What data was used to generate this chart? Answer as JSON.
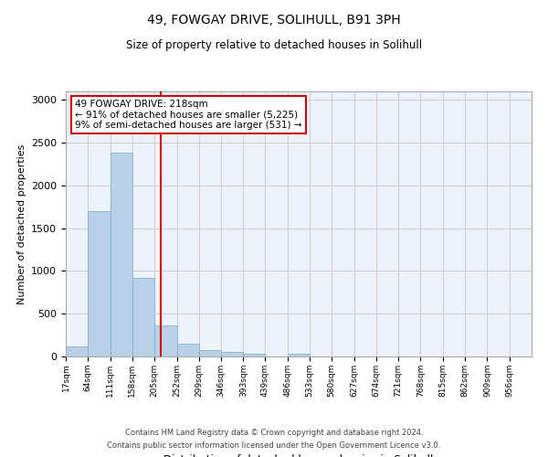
{
  "title1": "49, FOWGAY DRIVE, SOLIHULL, B91 3PH",
  "title2": "Size of property relative to detached houses in Solihull",
  "xlabel": "Distribution of detached houses by size in Solihull",
  "ylabel": "Number of detached properties",
  "bin_labels": [
    "17sqm",
    "64sqm",
    "111sqm",
    "158sqm",
    "205sqm",
    "252sqm",
    "299sqm",
    "346sqm",
    "393sqm",
    "439sqm",
    "486sqm",
    "533sqm",
    "580sqm",
    "627sqm",
    "674sqm",
    "721sqm",
    "768sqm",
    "815sqm",
    "862sqm",
    "909sqm",
    "956sqm"
  ],
  "bar_values": [
    120,
    1700,
    2380,
    920,
    360,
    150,
    80,
    55,
    30,
    0,
    30,
    0,
    0,
    0,
    0,
    0,
    0,
    0,
    0,
    0
  ],
  "bin_edges": [
    17,
    64,
    111,
    158,
    205,
    252,
    299,
    346,
    393,
    439,
    486,
    533,
    580,
    627,
    674,
    721,
    768,
    815,
    862,
    909,
    956
  ],
  "bar_color": "#b8d0e8",
  "bar_edge_color": "#7aacc8",
  "property_size": 218,
  "red_line_color": "#cc0000",
  "annotation_line1": "49 FOWGAY DRIVE: 218sqm",
  "annotation_line2": "← 91% of detached houses are smaller (5,225)",
  "annotation_line3": "9% of semi-detached houses are larger (531) →",
  "annotation_box_color": "#ffffff",
  "annotation_box_edge": "#cc0000",
  "ylim": [
    0,
    3100
  ],
  "yticks": [
    0,
    500,
    1000,
    1500,
    2000,
    2500,
    3000
  ],
  "grid_color": "#cccccc",
  "bg_color": "#eef2fb",
  "footer1": "Contains HM Land Registry data © Crown copyright and database right 2024.",
  "footer2": "Contains public sector information licensed under the Open Government Licence v3.0."
}
